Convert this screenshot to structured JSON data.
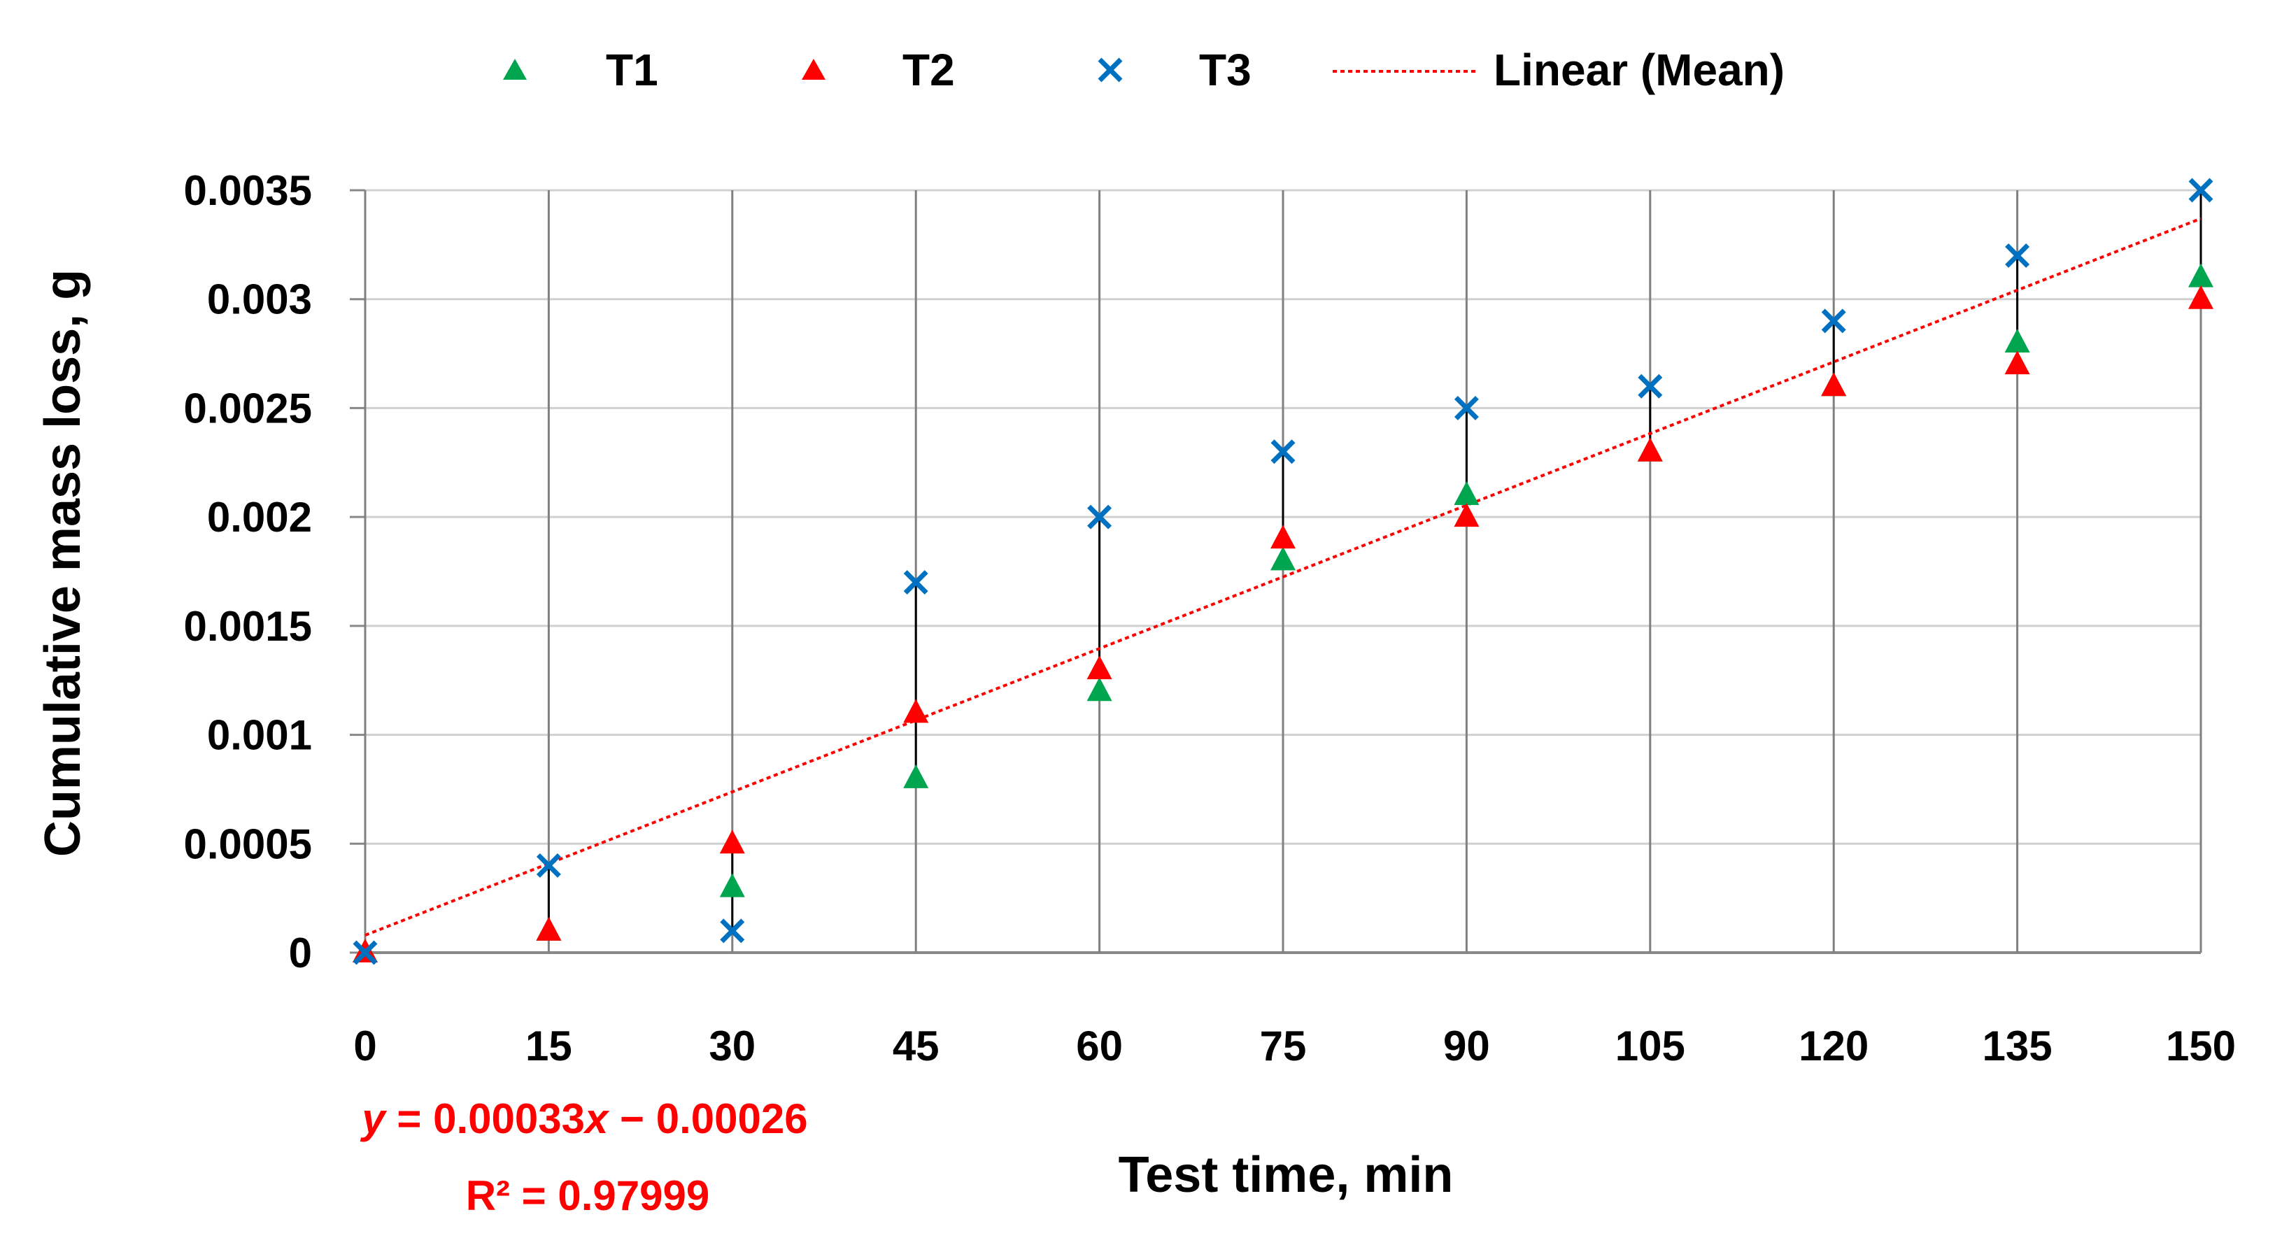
{
  "chart_data": {
    "type": "scatter",
    "xlabel": "Test time, min",
    "ylabel": "Cumulative mass loss, g",
    "xlim": [
      0,
      150
    ],
    "ylim": [
      0,
      0.0035
    ],
    "x_ticks": [
      "0",
      "15",
      "30",
      "45",
      "60",
      "75",
      "90",
      "105",
      "120",
      "135",
      "150"
    ],
    "y_ticks": [
      "0",
      "0.0005",
      "0.001",
      "0.0015",
      "0.002",
      "0.0025",
      "0.003",
      "0.0035"
    ],
    "x": [
      0,
      15,
      30,
      45,
      60,
      75,
      90,
      105,
      120,
      135,
      150
    ],
    "grid": "vertical and horizontal",
    "legend_position": "top",
    "series": [
      {
        "name": "T1",
        "marker": "triangle",
        "color": "#00a550",
        "values": [
          0,
          0.0001,
          0.0003,
          0.0008,
          0.0012,
          0.0018,
          0.0021,
          0.0023,
          0.0026,
          0.0028,
          0.0031
        ]
      },
      {
        "name": "T2",
        "marker": "triangle",
        "color": "#ff0000",
        "values": [
          0,
          0.0001,
          0.0005,
          0.0011,
          0.0013,
          0.0019,
          0.002,
          0.0023,
          0.0026,
          0.0027,
          0.003
        ]
      },
      {
        "name": "T3",
        "marker": "x",
        "color": "#0070c0",
        "values": [
          0,
          0.0004,
          0.0001,
          0.0017,
          0.002,
          0.0023,
          0.0025,
          0.0026,
          0.0029,
          0.0032,
          0.0035
        ]
      }
    ],
    "trendline": {
      "name": "Linear (Mean)",
      "color": "#ff0000",
      "style": "dotted",
      "y_at_xmin": 8e-05,
      "y_at_xmax": 0.00337,
      "equation_prefix": "y",
      "equation_body": " = 0.00033",
      "equation_var": "x",
      "equation_suffix": " − 0.00026",
      "r_squared": "R² = 0.97999"
    }
  }
}
